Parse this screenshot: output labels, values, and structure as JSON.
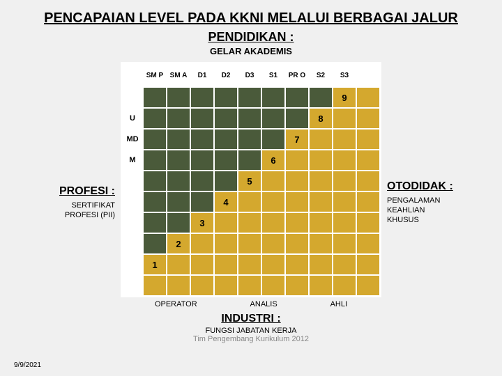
{
  "title": "PENCAPAIAN LEVEL PADA KKNI MELALUI BERBAGAI JALUR",
  "top": {
    "heading": "PENDIDIKAN :",
    "sub": "GELAR AKADEMIS"
  },
  "columns": [
    "SM P",
    "SM A",
    "D1",
    "D2",
    "D3",
    "S1",
    "PR O",
    "S2",
    "S3"
  ],
  "row_headers": [
    "",
    "U",
    "MD",
    "M",
    "",
    "",
    "",
    "",
    "",
    ""
  ],
  "left": {
    "heading": "PROFESI :",
    "sub": "SERTIFIKAT PROFESI (PII)"
  },
  "right": {
    "heading": "OTODIDAK :",
    "sub": "PENGALAMAN KEAHLIAN KHUSUS"
  },
  "bottom_labels": [
    "OPERATOR",
    "ANALIS",
    "AHLI"
  ],
  "bottom": {
    "heading": "INDUSTRI :",
    "sub": "FUNGSI JABATAN KERJA",
    "sub2": "Tim Pengembang Kurikulum 2012"
  },
  "date": "9/9/2021",
  "colors": {
    "dark": "#4a5a3a",
    "gold": "#d4a82e",
    "bg": "#f0f0f0"
  },
  "diagonal": {
    "9": {
      "row": 1,
      "col": 9
    },
    "8": {
      "row": 2,
      "col": 8
    },
    "7": {
      "row": 3,
      "col": 7
    },
    "6": {
      "row": 4,
      "col": 6
    },
    "5": {
      "row": 5,
      "col": 5
    },
    "4": {
      "row": 6,
      "col": 4
    },
    "3": {
      "row": 7,
      "col": 3
    },
    "2": {
      "row": 8,
      "col": 2
    },
    "1": {
      "row": 9,
      "col": 1
    }
  }
}
